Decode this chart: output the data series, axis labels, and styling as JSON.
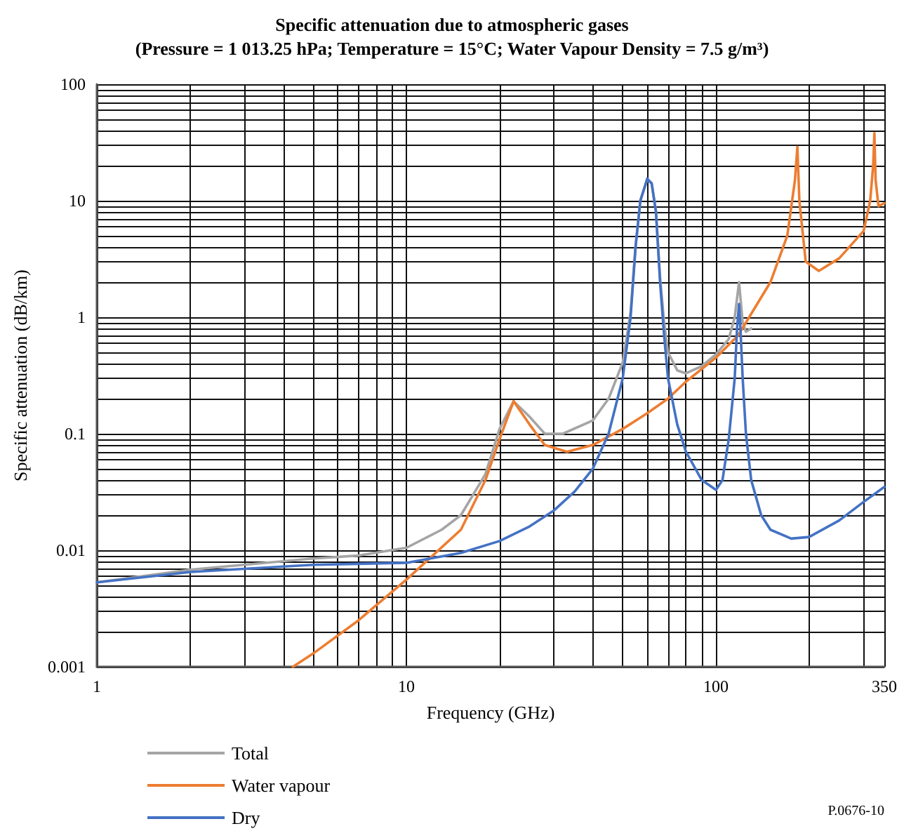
{
  "chart_data": {
    "type": "line",
    "title": "Specific attenuation due to atmospheric gases",
    "subtitle": "(Pressure = 1 013.25 hPa; Temperature = 15°C; Water Vapour Density = 7.5 g/m³)",
    "xlabel": "Frequency (GHz)",
    "ylabel": "Specific attenuation (dB/km)",
    "annotations": [
      "P.0676-10"
    ],
    "log": "xy",
    "grid": true,
    "legend": "bottom left",
    "marker": "none",
    "line_style": "solid",
    "xlim": [
      1,
      350
    ],
    "ylim": [
      0.001,
      100
    ],
    "xticks": [
      1,
      {
        "value": 2,
        "label": null
      },
      {
        "value": 3,
        "label": null
      },
      {
        "value": 4,
        "label": null
      },
      {
        "value": 5,
        "label": null
      },
      {
        "value": 6,
        "label": null
      },
      {
        "value": 7,
        "label": null
      },
      {
        "value": 8,
        "label": null
      },
      {
        "value": 9,
        "label": null
      },
      10,
      {
        "value": 20,
        "label": null
      },
      {
        "value": 30,
        "label": null
      },
      {
        "value": 40,
        "label": null
      },
      {
        "value": 50,
        "label": null
      },
      {
        "value": 60,
        "label": null
      },
      {
        "value": 70,
        "label": null
      },
      {
        "value": 80,
        "label": null
      },
      {
        "value": 90,
        "label": null
      },
      100,
      {
        "value": 200,
        "label": null
      },
      {
        "value": 300,
        "label": null
      },
      350
    ],
    "yticks": [
      0.001,
      {
        "value": 0.002,
        "label": null
      },
      {
        "value": 0.003,
        "label": null
      },
      {
        "value": 0.004,
        "label": null
      },
      {
        "value": 0.005,
        "label": null
      },
      {
        "value": 0.006,
        "label": null
      },
      {
        "value": 0.007,
        "label": null
      },
      {
        "value": 0.008,
        "label": null
      },
      {
        "value": 0.009,
        "label": null
      },
      0.01,
      {
        "value": 0.02,
        "label": null
      },
      {
        "value": 0.03,
        "label": null
      },
      {
        "value": 0.04,
        "label": null
      },
      {
        "value": 0.05,
        "label": null
      },
      {
        "value": 0.06,
        "label": null
      },
      {
        "value": 0.07,
        "label": null
      },
      {
        "value": 0.08,
        "label": null
      },
      {
        "value": 0.09,
        "label": null
      },
      0.1,
      {
        "value": 0.2,
        "label": null
      },
      {
        "value": 0.3,
        "label": null
      },
      {
        "value": 0.4,
        "label": null
      },
      {
        "value": 0.5,
        "label": null
      },
      {
        "value": 0.6,
        "label": null
      },
      {
        "value": 0.7,
        "label": null
      },
      {
        "value": 0.8,
        "label": null
      },
      {
        "value": 0.9,
        "label": null
      },
      1,
      {
        "value": 2,
        "label": null
      },
      {
        "value": 3,
        "label": null
      },
      {
        "value": 4,
        "label": null
      },
      {
        "value": 5,
        "label": null
      },
      {
        "value": 6,
        "label": null
      },
      {
        "value": 7,
        "label": null
      },
      {
        "value": 8,
        "label": null
      },
      {
        "value": 9,
        "label": null
      },
      10,
      {
        "value": 20,
        "label": null
      },
      {
        "value": 30,
        "label": null
      },
      {
        "value": 40,
        "label": null
      },
      {
        "value": 50,
        "label": null
      },
      {
        "value": 60,
        "label": null
      },
      {
        "value": 70,
        "label": null
      },
      {
        "value": 80,
        "label": null
      },
      {
        "value": 90,
        "label": null
      },
      100
    ],
    "series": [
      {
        "name": "Total",
        "color": "#a5a5a5",
        "x": [
          1,
          2,
          5,
          7,
          10,
          13,
          15,
          18,
          20,
          22.2,
          25,
          28,
          32,
          40,
          45,
          50,
          53,
          55,
          57,
          60,
          62,
          64,
          66,
          68,
          70,
          75,
          80,
          90,
          100,
          110,
          115,
          118.75,
          122,
          125,
          130
        ],
        "values": [
          0.0053,
          0.0068,
          0.0085,
          0.009,
          0.0105,
          0.015,
          0.02,
          0.045,
          0.11,
          0.19,
          0.14,
          0.1,
          0.1,
          0.13,
          0.2,
          0.41,
          1.1,
          4.1,
          10.1,
          15.2,
          14.2,
          8.2,
          2.2,
          0.9,
          0.5,
          0.35,
          0.33,
          0.38,
          0.48,
          0.65,
          1,
          2,
          0.9,
          0.75,
          0.8
        ]
      },
      {
        "name": "Water vapour",
        "color": "#ed7d31",
        "x": [
          4.3,
          5,
          7,
          10,
          15,
          18,
          20,
          22.2,
          25,
          28,
          33,
          40,
          50,
          60,
          70,
          80,
          100,
          118,
          150,
          170,
          180,
          183.3,
          186,
          195,
          215,
          250,
          300,
          315,
          322,
          325,
          328,
          335,
          350
        ],
        "values": [
          0.001,
          0.0013,
          0.0025,
          0.0056,
          0.015,
          0.04,
          0.09,
          0.19,
          0.12,
          0.08,
          0.07,
          0.08,
          0.11,
          0.15,
          0.2,
          0.28,
          0.45,
          0.7,
          2,
          5,
          15,
          29,
          10,
          3,
          2.5,
          3.2,
          5.5,
          10,
          20,
          38,
          15,
          9,
          9.5
        ]
      },
      {
        "name": "Dry",
        "color": "#4472c4",
        "x": [
          1,
          2,
          5,
          10,
          15,
          20,
          25,
          30,
          35,
          40,
          45,
          50,
          53,
          55,
          57,
          60,
          62,
          64,
          66,
          68,
          70,
          75,
          80,
          90,
          100,
          105,
          110,
          115,
          117,
          118.75,
          120,
          122,
          125,
          130,
          140,
          150,
          175,
          200,
          250,
          300,
          350
        ],
        "values": [
          0.0053,
          0.0065,
          0.0075,
          0.0078,
          0.0095,
          0.012,
          0.016,
          0.022,
          0.032,
          0.05,
          0.1,
          0.3,
          1,
          4,
          10,
          15.5,
          14,
          8,
          2,
          0.7,
          0.3,
          0.12,
          0.07,
          0.04,
          0.033,
          0.04,
          0.09,
          0.3,
          0.8,
          1.3,
          0.8,
          0.3,
          0.1,
          0.04,
          0.02,
          0.015,
          0.0126,
          0.013,
          0.018,
          0.026,
          0.035
        ]
      }
    ]
  }
}
